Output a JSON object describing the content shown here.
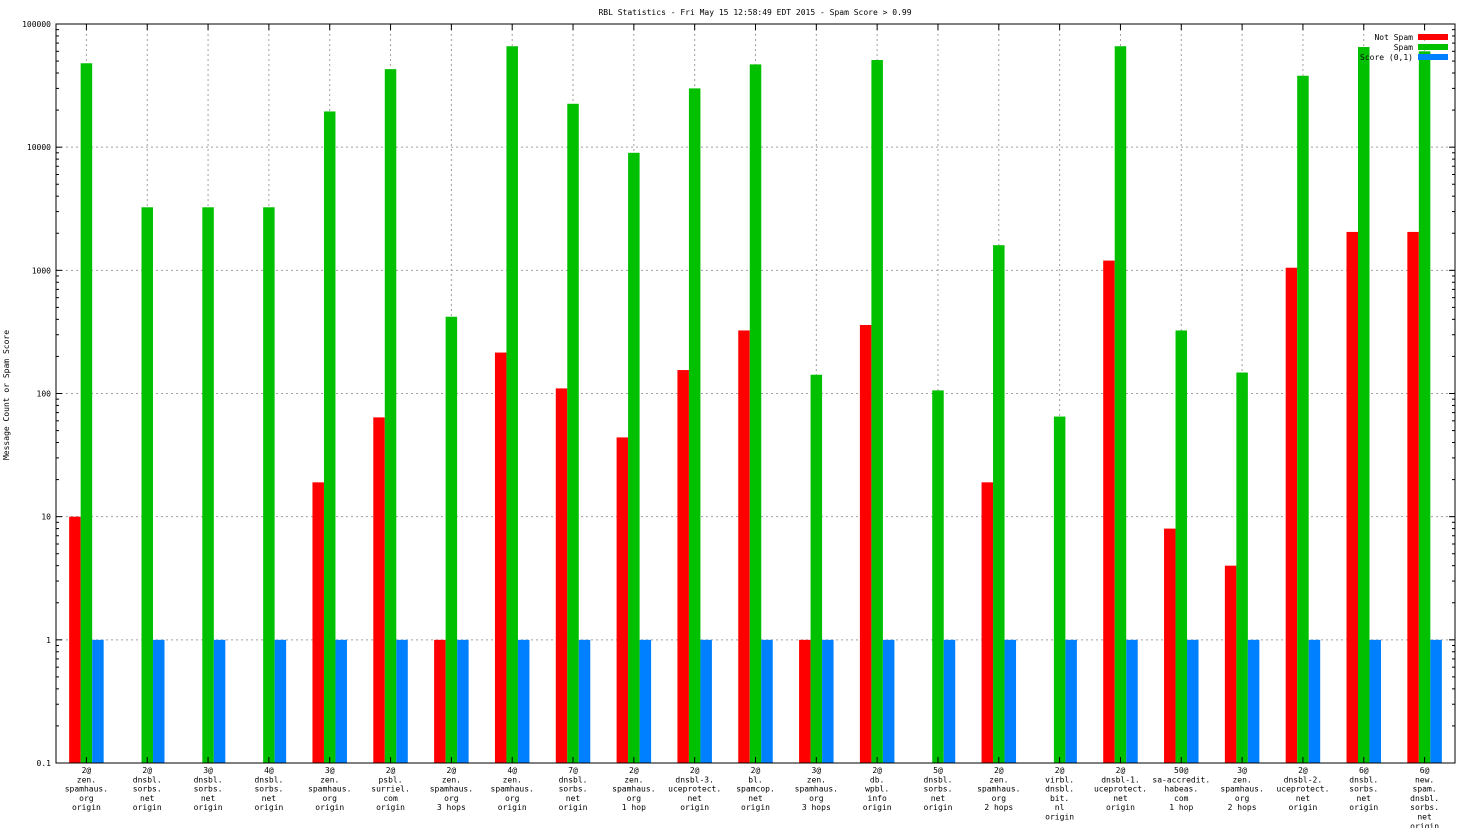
{
  "chart_data": {
    "type": "bar",
    "title": "RBL Statistics - Fri May 15 12:58:49 EDT 2015 - Spam Score > 0.99",
    "xlabel": "",
    "ylabel": "Message Count or Spam Score",
    "yscale": "log",
    "ylim": [
      0.1,
      100000
    ],
    "yticks": [
      0.1,
      1,
      10,
      100,
      1000,
      10000,
      100000
    ],
    "ytick_labels": [
      "0.1",
      "1",
      "10",
      "100",
      "1000",
      "10000",
      "100000"
    ],
    "grid": true,
    "legend_position": "top-right",
    "categories": [
      [
        "2@",
        "zen.",
        "spamhaus.",
        "org",
        "origin"
      ],
      [
        "2@",
        "dnsbl.",
        "sorbs.",
        "net",
        "origin"
      ],
      [
        "3@",
        "dnsbl.",
        "sorbs.",
        "net",
        "origin"
      ],
      [
        "4@",
        "dnsbl.",
        "sorbs.",
        "net",
        "origin"
      ],
      [
        "3@",
        "zen.",
        "spamhaus.",
        "org",
        "origin"
      ],
      [
        "2@",
        "psbl.",
        "surriel.",
        "com",
        "origin"
      ],
      [
        "2@",
        "zen.",
        "spamhaus.",
        "org",
        "3 hops"
      ],
      [
        "4@",
        "zen.",
        "spamhaus.",
        "org",
        "origin"
      ],
      [
        "7@",
        "dnsbl.",
        "sorbs.",
        "net",
        "origin"
      ],
      [
        "2@",
        "zen.",
        "spamhaus.",
        "org",
        "1 hop"
      ],
      [
        "2@",
        "dnsbl-3.",
        "uceprotect.",
        "net",
        "origin"
      ],
      [
        "2@",
        "bl.",
        "spamcop.",
        "net",
        "origin"
      ],
      [
        "3@",
        "zen.",
        "spamhaus.",
        "org",
        "3 hops"
      ],
      [
        "2@",
        "db.",
        "wpbl.",
        "info",
        "origin"
      ],
      [
        "5@",
        "dnsbl.",
        "sorbs.",
        "net",
        "origin"
      ],
      [
        "2@",
        "zen.",
        "spamhaus.",
        "org",
        "2 hops"
      ],
      [
        "2@",
        "virbl.",
        "dnsbl.",
        "bit.",
        "nl",
        "origin"
      ],
      [
        "2@",
        "dnsbl-1.",
        "uceprotect.",
        "net",
        "origin"
      ],
      [
        "50@",
        "sa-accredit.",
        "habeas.",
        "com",
        "1 hop"
      ],
      [
        "3@",
        "zen.",
        "spamhaus.",
        "org",
        "2 hops"
      ],
      [
        "2@",
        "dnsbl-2.",
        "uceprotect.",
        "net",
        "origin"
      ],
      [
        "6@",
        "dnsbl.",
        "sorbs.",
        "net",
        "origin"
      ],
      [
        "6@",
        "new.",
        "spam.",
        "dnsbl.",
        "sorbs.",
        "net",
        "origin"
      ]
    ],
    "series": [
      {
        "name": "Not Spam",
        "color": "#ff0000",
        "values": [
          10,
          null,
          null,
          null,
          19,
          64,
          1,
          215,
          110,
          44,
          155,
          325,
          1,
          360,
          null,
          19,
          null,
          1200,
          8,
          4,
          1050,
          2050,
          2050
        ]
      },
      {
        "name": "Spam",
        "color": "#00c000",
        "values": [
          48000,
          3250,
          3250,
          3250,
          19500,
          43000,
          420,
          66000,
          22500,
          9000,
          30000,
          47000,
          142,
          51000,
          106,
          1600,
          65,
          66000,
          325,
          148,
          38000,
          65000,
          60000
        ]
      },
      {
        "name": "Score (0,1)",
        "color": "#0080ff",
        "values": [
          1,
          1,
          1,
          1,
          1,
          1,
          1,
          1,
          1,
          1,
          1,
          1,
          1,
          1,
          1,
          1,
          1,
          1,
          1,
          1,
          1,
          1,
          1
        ]
      }
    ]
  }
}
